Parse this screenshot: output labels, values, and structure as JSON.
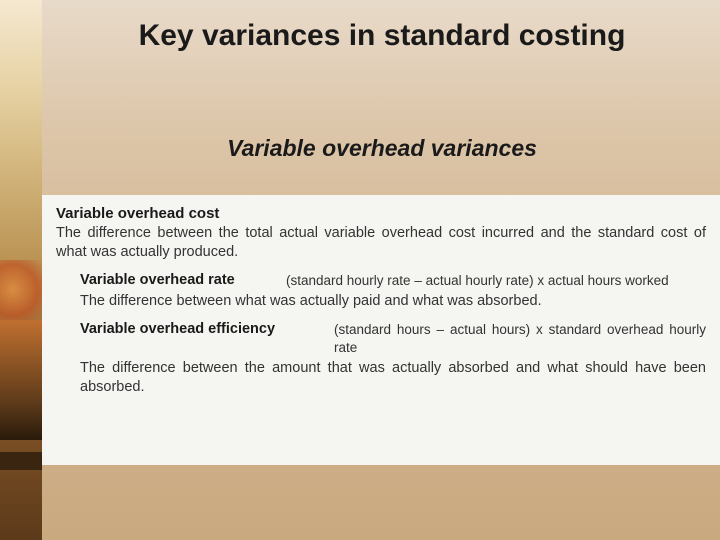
{
  "title": "Key variances in standard costing",
  "subtitle": "Variable overhead variances",
  "sections": {
    "main_head": "Variable overhead cost",
    "main_desc": "The difference between the total actual variable overhead cost incurred and the standard cost of what was actually produced.",
    "rate": {
      "label": "Variable overhead rate",
      "formula": "(standard hourly rate – actual hourly rate) x actual hours worked",
      "desc": "The difference between what was actually paid and what was absorbed."
    },
    "efficiency": {
      "label": "Variable overhead efficiency",
      "formula": "(standard hours – actual hours) x standard overhead hourly rate",
      "desc": "The difference between the amount that was actually absorbed and what should have been absorbed."
    }
  },
  "colors": {
    "bg_top": "#e8dac9",
    "bg_bottom": "#c9a97f",
    "box_bg": "#f5f5f2",
    "text": "#1a1a1a"
  },
  "fonts": {
    "title_size": 30,
    "subtitle_size": 23,
    "body_size": 14.5
  }
}
